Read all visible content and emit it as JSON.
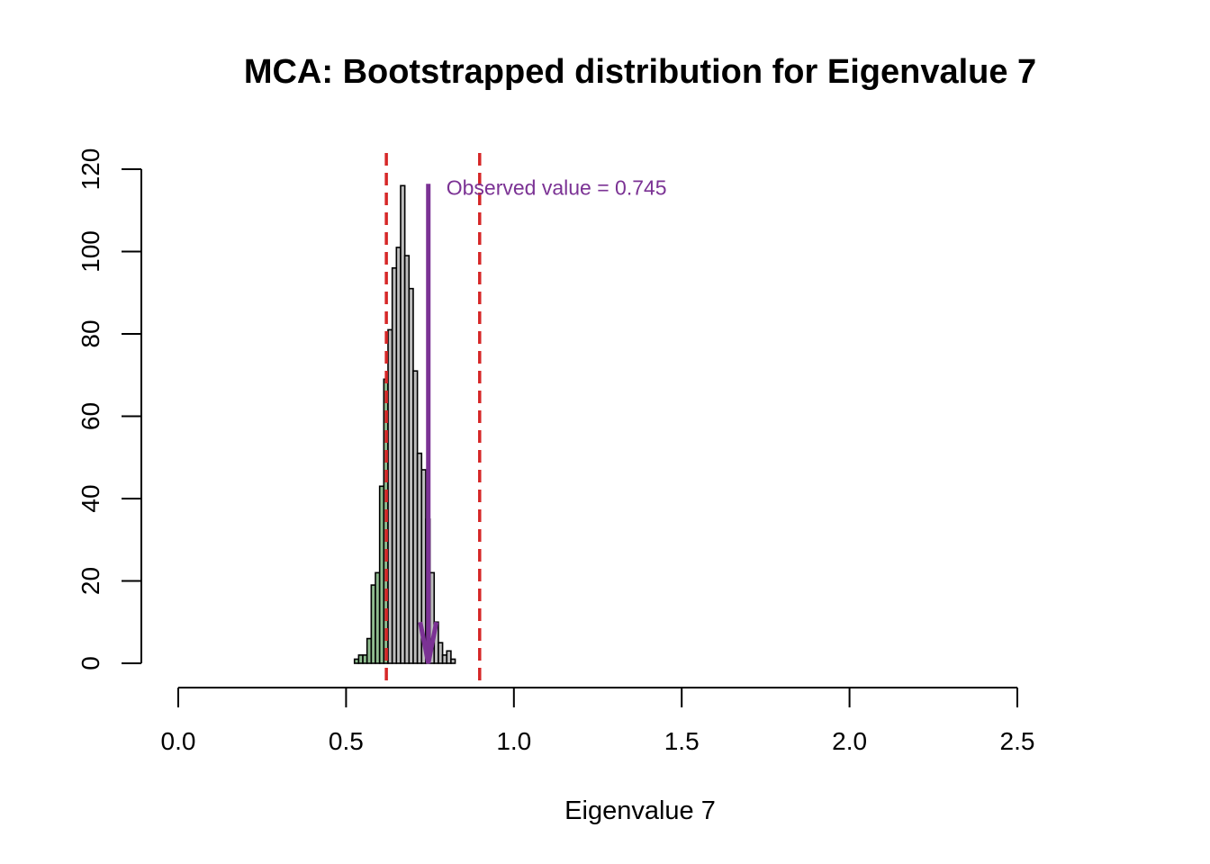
{
  "chart_data": {
    "type": "bar",
    "title": "MCA: Bootstrapped distribution for Eigenvalue 7",
    "xlabel": "Eigenvalue 7",
    "ylabel": "",
    "xlim": [
      0.0,
      2.5
    ],
    "ylim": [
      0,
      120
    ],
    "x_ticks": [
      "0.0",
      "0.5",
      "1.0",
      "1.5",
      "2.0",
      "2.5"
    ],
    "y_ticks": [
      "0",
      "20",
      "40",
      "60",
      "80",
      "100",
      "120"
    ],
    "grid": false,
    "bin_width": 0.0125,
    "bins": [
      {
        "start": 0.525,
        "count": 1
      },
      {
        "start": 0.5375,
        "count": 2
      },
      {
        "start": 0.55,
        "count": 2
      },
      {
        "start": 0.5625,
        "count": 6
      },
      {
        "start": 0.575,
        "count": 19
      },
      {
        "start": 0.5875,
        "count": 22
      },
      {
        "start": 0.6,
        "count": 43
      },
      {
        "start": 0.6125,
        "count": 69
      },
      {
        "start": 0.625,
        "count": 81
      },
      {
        "start": 0.6375,
        "count": 96
      },
      {
        "start": 0.65,
        "count": 101
      },
      {
        "start": 0.6625,
        "count": 116
      },
      {
        "start": 0.675,
        "count": 99
      },
      {
        "start": 0.6875,
        "count": 91
      },
      {
        "start": 0.7,
        "count": 71
      },
      {
        "start": 0.7125,
        "count": 51
      },
      {
        "start": 0.725,
        "count": 47
      },
      {
        "start": 0.7375,
        "count": 35
      },
      {
        "start": 0.75,
        "count": 22
      },
      {
        "start": 0.7625,
        "count": 10
      },
      {
        "start": 0.775,
        "count": 5
      },
      {
        "start": 0.7875,
        "count": 2
      },
      {
        "start": 0.8,
        "count": 3
      },
      {
        "start": 0.8125,
        "count": 1
      }
    ],
    "ci_lower": 0.62,
    "ci_upper": 0.898,
    "observed_value": 0.745,
    "annotation": "Observed value = 0.745",
    "colors": {
      "inside_ci": "#bebebe",
      "outside_ci": "#8fbc8f",
      "ci_lines": "#d62728",
      "observed": "#7b3294",
      "axis": "#000000"
    }
  }
}
